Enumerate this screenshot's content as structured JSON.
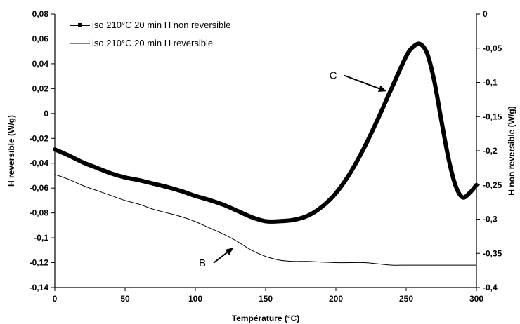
{
  "chart_data": {
    "type": "line",
    "xlabel": "Température (°C)",
    "ylabel_left": "H reversible (W/g)",
    "ylabel_right": "H non reversible (W/g)",
    "xlim": [
      0,
      300
    ],
    "ylim_left": [
      -0.14,
      0.08
    ],
    "ylim_right": [
      -0.4,
      0
    ],
    "x_ticks": [
      "0",
      "50",
      "100",
      "150",
      "200",
      "250",
      "300"
    ],
    "y_left_ticks": [
      "0,08",
      "0,06",
      "0,04",
      "0,02",
      "0",
      "-0,02",
      "-0,04",
      "-0,06",
      "-0,08",
      "-0,1",
      "-0,12",
      "-0,14"
    ],
    "y_right_ticks": [
      "0",
      "-0,05",
      "-0,1",
      "-0,15",
      "-0,2",
      "-0,25",
      "-0,3",
      "-0,35",
      "-0,4"
    ],
    "grid": false,
    "legend_position": "top-left",
    "series": [
      {
        "name": "iso 210°C 20 min H non reversible",
        "axis": "right",
        "style": "thick-with-markers",
        "color": "#000000",
        "x": [
          0,
          10,
          20,
          30,
          40,
          50,
          60,
          70,
          80,
          90,
          100,
          110,
          120,
          130,
          140,
          150,
          160,
          170,
          180,
          190,
          200,
          210,
          220,
          230,
          240,
          250,
          255,
          260,
          265,
          270,
          275,
          280,
          285,
          290,
          295,
          300
        ],
        "y": [
          -0.198,
          -0.207,
          -0.217,
          -0.225,
          -0.233,
          -0.239,
          -0.243,
          -0.248,
          -0.253,
          -0.259,
          -0.266,
          -0.272,
          -0.279,
          -0.288,
          -0.297,
          -0.303,
          -0.303,
          -0.301,
          -0.295,
          -0.282,
          -0.262,
          -0.233,
          -0.196,
          -0.153,
          -0.107,
          -0.062,
          -0.048,
          -0.044,
          -0.058,
          -0.098,
          -0.155,
          -0.21,
          -0.25,
          -0.268,
          -0.262,
          -0.25
        ]
      },
      {
        "name": "iso 210°C 20 min H reversible",
        "axis": "left",
        "style": "thin",
        "color": "#000000",
        "x": [
          0,
          10,
          20,
          30,
          40,
          50,
          60,
          70,
          80,
          90,
          100,
          110,
          120,
          130,
          140,
          150,
          160,
          170,
          180,
          200,
          220,
          230,
          240,
          250,
          260,
          270,
          280,
          290,
          300
        ],
        "y": [
          -0.049,
          -0.053,
          -0.058,
          -0.062,
          -0.066,
          -0.07,
          -0.073,
          -0.077,
          -0.08,
          -0.083,
          -0.087,
          -0.092,
          -0.097,
          -0.103,
          -0.11,
          -0.115,
          -0.118,
          -0.119,
          -0.119,
          -0.12,
          -0.12,
          -0.121,
          -0.122,
          -0.122,
          -0.122,
          -0.122,
          -0.122,
          -0.122,
          -0.122
        ]
      }
    ],
    "annotations": [
      {
        "text": "B",
        "x": 105,
        "y": -0.123,
        "arrow_to_x": 127,
        "arrow_to_y": -0.108,
        "axis": "left"
      },
      {
        "text": "C",
        "x": 198,
        "y": -0.095,
        "arrow_to_x": 236,
        "arrow_to_y": -0.113,
        "axis": "right"
      }
    ]
  }
}
